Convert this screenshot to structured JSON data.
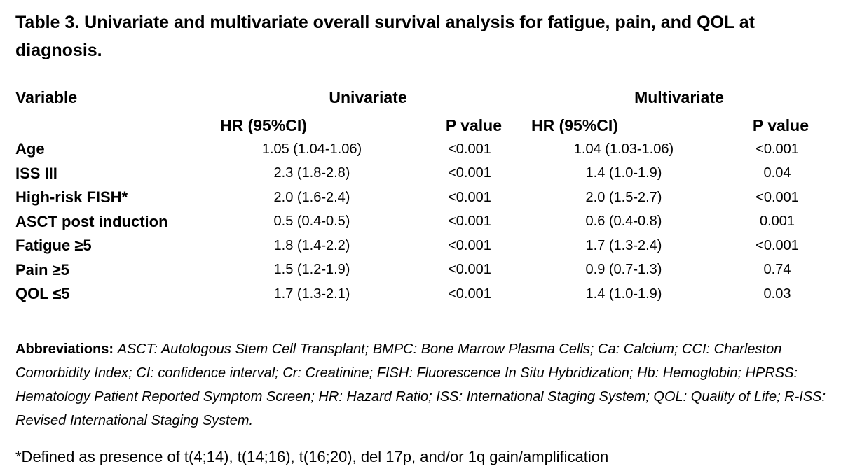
{
  "title": "Table 3. Univariate and multivariate overall survival analysis for fatigue, pain, and QOL at diagnosis.",
  "table": {
    "header": {
      "variable": "Variable",
      "univariate": "Univariate",
      "multivariate": "Multivariate",
      "hr": "HR (95%CI)",
      "p": "P value"
    },
    "rows": [
      {
        "label": "Age",
        "uni_hr": "1.05 (1.04-1.06)",
        "uni_p": "<0.001",
        "multi_hr": "1.04 (1.03-1.06)",
        "multi_p": "<0.001"
      },
      {
        "label": "ISS III",
        "uni_hr": "2.3 (1.8-2.8)",
        "uni_p": "<0.001",
        "multi_hr": "1.4 (1.0-1.9)",
        "multi_p": "0.04"
      },
      {
        "label": "High-risk FISH*",
        "uni_hr": "2.0 (1.6-2.4)",
        "uni_p": "<0.001",
        "multi_hr": "2.0 (1.5-2.7)",
        "multi_p": "<0.001"
      },
      {
        "label": "ASCT post induction",
        "uni_hr": "0.5 (0.4-0.5)",
        "uni_p": "<0.001",
        "multi_hr": "0.6 (0.4-0.8)",
        "multi_p": "0.001"
      },
      {
        "label": "Fatigue ≥5",
        "uni_hr": "1.8 (1.4-2.2)",
        "uni_p": "<0.001",
        "multi_hr": "1.7 (1.3-2.4)",
        "multi_p": "<0.001"
      },
      {
        "label": "Pain ≥5",
        "uni_hr": "1.5 (1.2-1.9)",
        "uni_p": "<0.001",
        "multi_hr": "0.9 (0.7-1.3)",
        "multi_p": "0.74"
      },
      {
        "label": "QOL ≤5",
        "uni_hr": "1.7 (1.3-2.1)",
        "uni_p": "<0.001",
        "multi_hr": "1.4 (1.0-1.9)",
        "multi_p": "0.03"
      }
    ]
  },
  "abbreviations": {
    "lead": "Abbreviations:",
    "text": "ASCT: Autologous Stem Cell Transplant; BMPC: Bone Marrow Plasma Cells; Ca: Calcium; CCI: Charleston Comorbidity Index; CI: confidence interval; Cr: Creatinine; FISH: Fluorescence In Situ Hybridization; Hb: Hemoglobin; HPRSS: Hematology Patient Reported Symptom Screen; HR: Hazard Ratio; ISS: International Staging System; QOL: Quality of Life; R-ISS: Revised International Staging System."
  },
  "footnote": "*Defined as presence of t(4;14), t(14;16), t(16;20), del 17p, and/or 1q gain/amplification"
}
